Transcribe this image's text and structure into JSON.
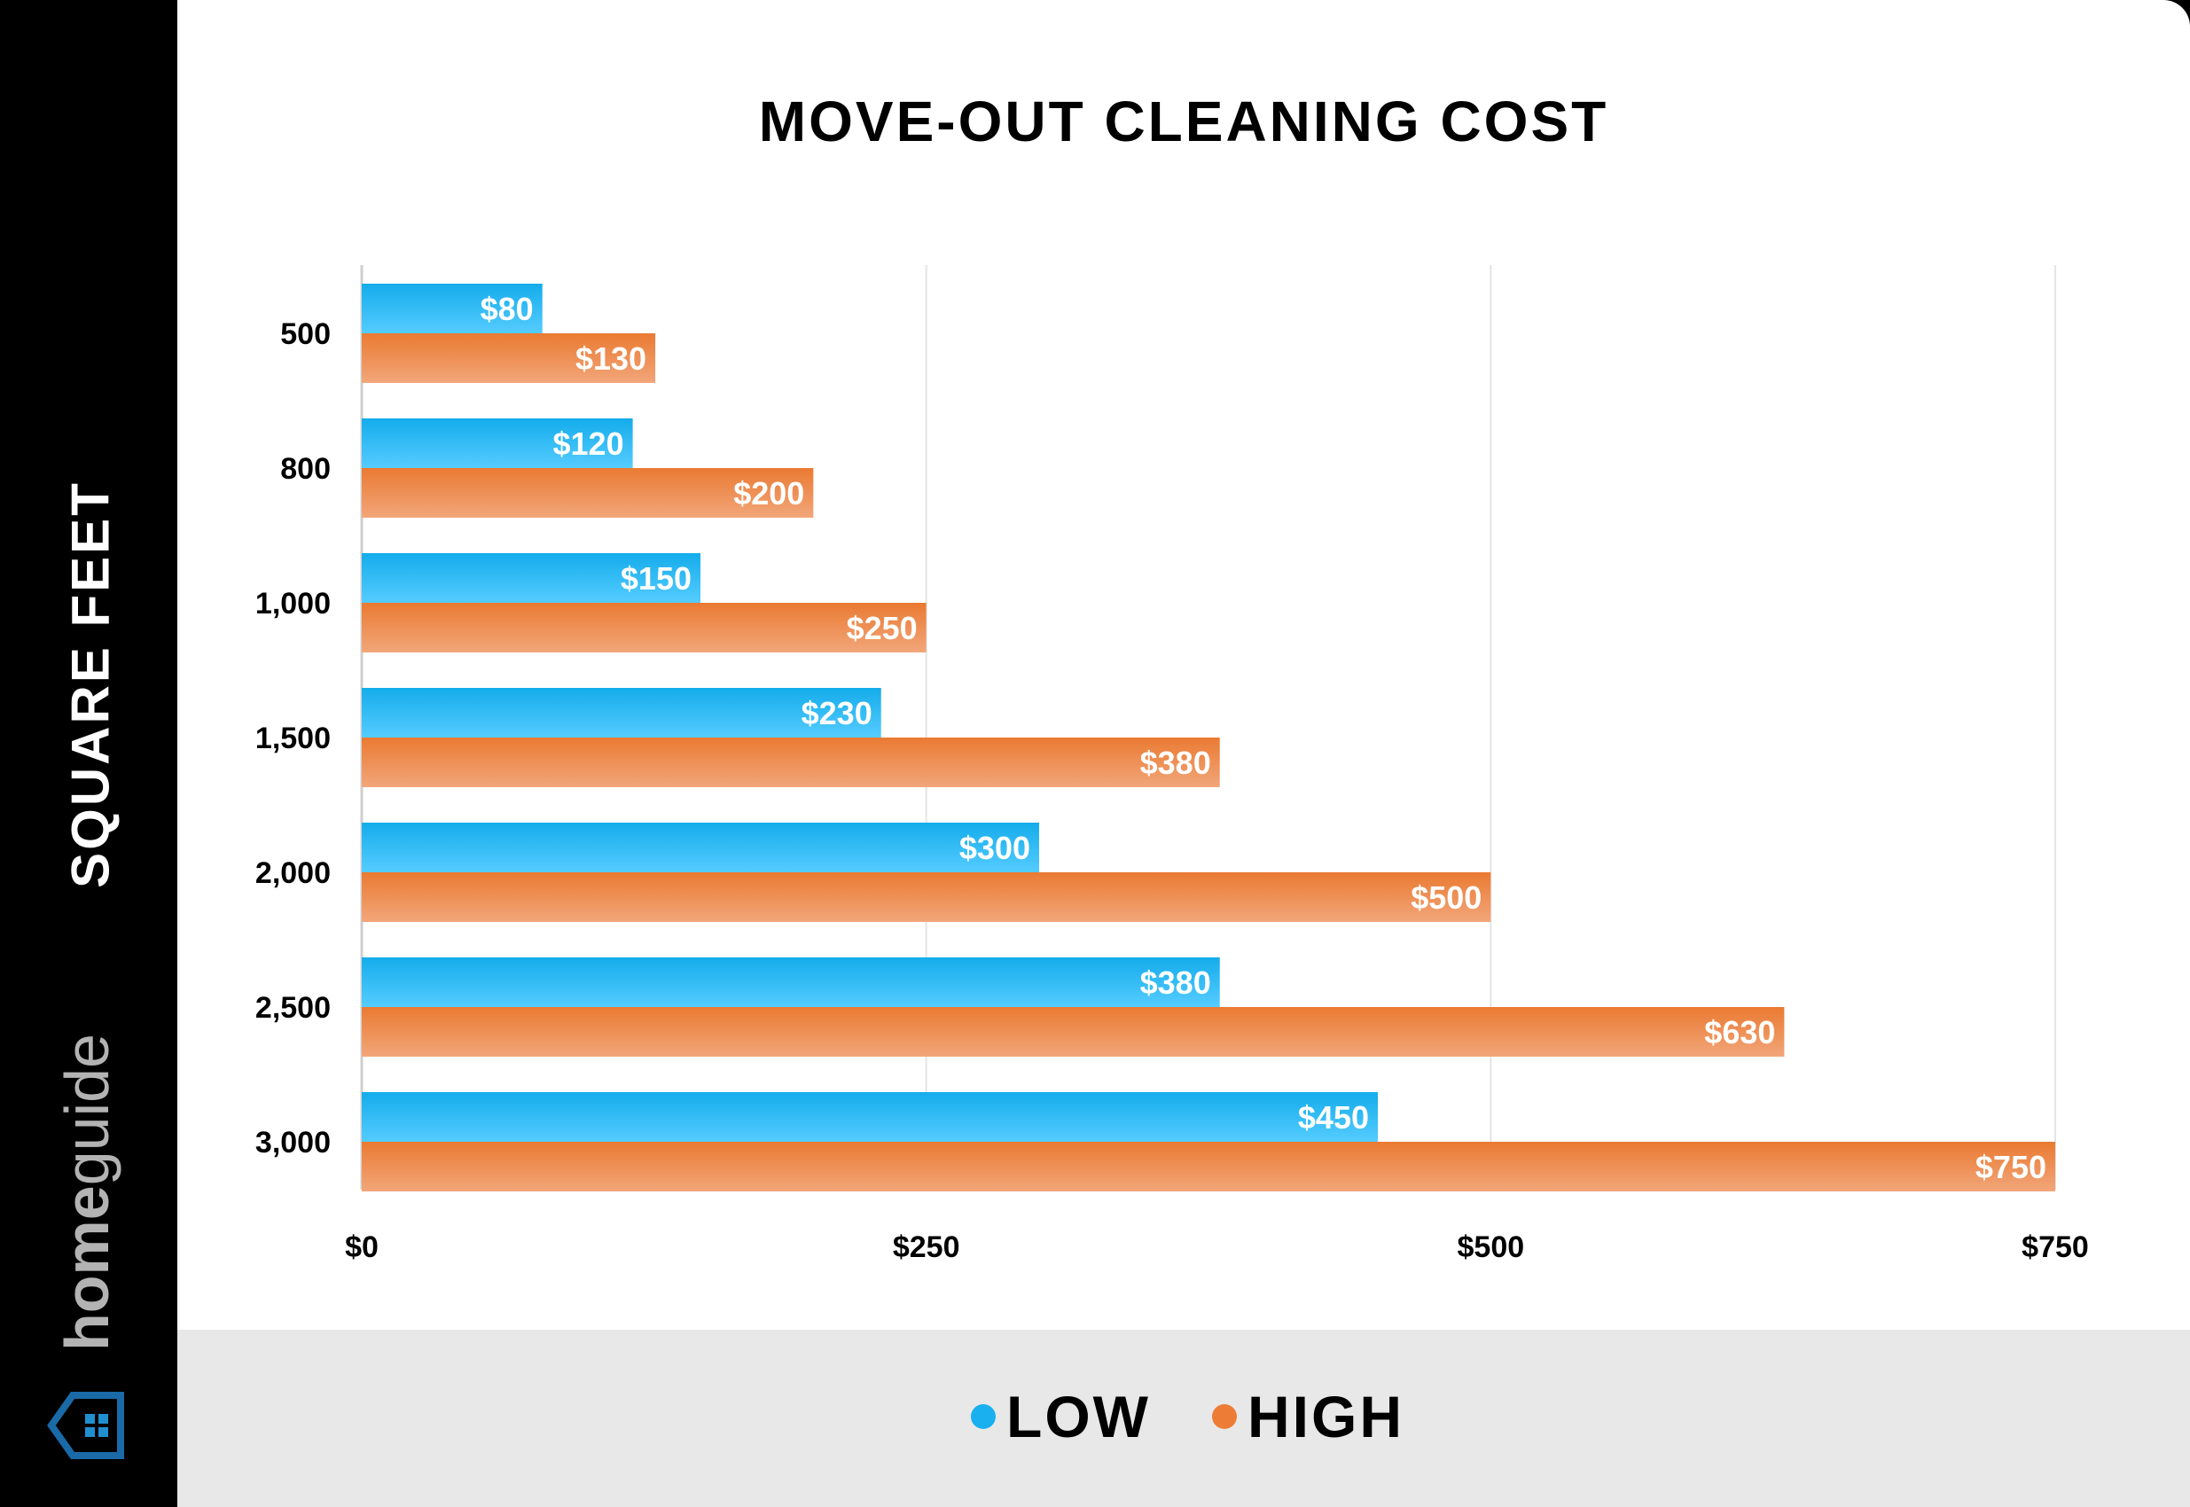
{
  "sidebar": {
    "axis_label": "SQUARE FEET",
    "logo_bold": "home",
    "logo_light": "guide"
  },
  "colors": {
    "low": "#1ab0ef",
    "high": "#ec7c36",
    "low_light": "#55ccff",
    "high_light": "#f2a67a"
  },
  "chart_data": {
    "type": "bar",
    "orientation": "horizontal",
    "title": "MOVE-OUT CLEANING COST",
    "xlabel": "",
    "ylabel": "SQUARE FEET",
    "categories": [
      "500",
      "800",
      "1,000",
      "1,500",
      "2,000",
      "2,500",
      "3,000"
    ],
    "series": [
      {
        "name": "LOW",
        "values": [
          80,
          120,
          150,
          230,
          300,
          380,
          450
        ],
        "labels": [
          "$80",
          "$120",
          "$150",
          "$230",
          "$300",
          "$380",
          "$450"
        ]
      },
      {
        "name": "HIGH",
        "values": [
          130,
          200,
          250,
          380,
          500,
          630,
          750
        ],
        "labels": [
          "$130",
          "$200",
          "$250",
          "$380",
          "$500",
          "$630",
          "$750"
        ]
      }
    ],
    "xlim": [
      0,
      750
    ],
    "xticks": [
      0,
      250,
      500,
      750
    ],
    "xtick_labels": [
      "$0",
      "$250",
      "$500",
      "$750"
    ],
    "grid": true,
    "legend": "bottom-center"
  }
}
